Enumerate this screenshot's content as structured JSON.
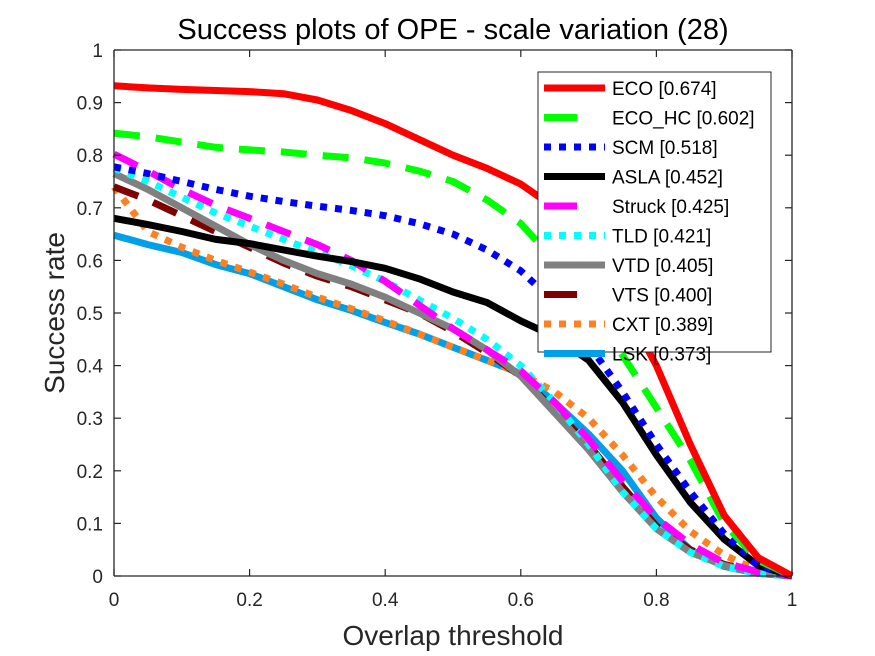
{
  "chart_data": {
    "type": "line",
    "title": "Success plots of OPE - scale variation (28)",
    "xlabel": "Overlap threshold",
    "ylabel": "Success rate",
    "xlim": [
      0,
      1
    ],
    "ylim": [
      0,
      1
    ],
    "xticks": [
      "0",
      "0.2",
      "0.4",
      "0.6",
      "0.8",
      "1"
    ],
    "yticks": [
      "0",
      "0.1",
      "0.2",
      "0.3",
      "0.4",
      "0.5",
      "0.6",
      "0.7",
      "0.8",
      "0.9",
      "1"
    ],
    "xtick_values": [
      0,
      0.2,
      0.4,
      0.6,
      0.8,
      1
    ],
    "ytick_values": [
      0,
      0.1,
      0.2,
      0.3,
      0.4,
      0.5,
      0.6,
      0.7,
      0.8,
      0.9,
      1
    ],
    "grid": false,
    "legend_position": "top-right",
    "x": [
      0,
      0.05,
      0.1,
      0.15,
      0.2,
      0.25,
      0.3,
      0.35,
      0.4,
      0.45,
      0.5,
      0.55,
      0.6,
      0.65,
      0.7,
      0.75,
      0.8,
      0.85,
      0.9,
      0.95,
      1
    ],
    "series": [
      {
        "name": "ECO [0.674]",
        "color": "#ff0000",
        "style": "solid",
        "values": [
          0.932,
          0.928,
          0.925,
          0.923,
          0.921,
          0.917,
          0.905,
          0.885,
          0.86,
          0.83,
          0.8,
          0.775,
          0.745,
          0.7,
          0.62,
          0.52,
          0.4,
          0.25,
          0.115,
          0.035,
          0.0
        ]
      },
      {
        "name": "ECO_HC [0.602]",
        "color": "#00ff00",
        "style": "dashed",
        "values": [
          0.842,
          0.835,
          0.825,
          0.815,
          0.81,
          0.806,
          0.8,
          0.795,
          0.785,
          0.77,
          0.75,
          0.715,
          0.67,
          0.6,
          0.52,
          0.42,
          0.32,
          0.22,
          0.1,
          0.03,
          0.0
        ]
      },
      {
        "name": "SCM [0.518]",
        "color": "#0000ff",
        "style": "dotted",
        "values": [
          0.778,
          0.765,
          0.75,
          0.735,
          0.722,
          0.712,
          0.703,
          0.695,
          0.685,
          0.67,
          0.65,
          0.62,
          0.58,
          0.52,
          0.44,
          0.35,
          0.25,
          0.16,
          0.08,
          0.02,
          0.0
        ]
      },
      {
        "name": "ASLA [0.452]",
        "color": "#000000",
        "style": "solid",
        "values": [
          0.68,
          0.668,
          0.655,
          0.64,
          0.632,
          0.62,
          0.608,
          0.598,
          0.585,
          0.565,
          0.54,
          0.52,
          0.485,
          0.455,
          0.41,
          0.33,
          0.23,
          0.14,
          0.07,
          0.02,
          0.0
        ]
      },
      {
        "name": "Struck [0.425]",
        "color": "#ff00ff",
        "style": "dashed",
        "values": [
          0.802,
          0.77,
          0.735,
          0.705,
          0.68,
          0.655,
          0.63,
          0.6,
          0.56,
          0.515,
          0.47,
          0.43,
          0.39,
          0.33,
          0.26,
          0.18,
          0.11,
          0.06,
          0.025,
          0.008,
          0.0
        ]
      },
      {
        "name": "TLD [0.421]",
        "color": "#00ffff",
        "style": "dotted",
        "values": [
          0.775,
          0.75,
          0.72,
          0.69,
          0.665,
          0.64,
          0.615,
          0.59,
          0.56,
          0.525,
          0.49,
          0.45,
          0.4,
          0.33,
          0.25,
          0.16,
          0.09,
          0.045,
          0.018,
          0.005,
          0.0
        ]
      },
      {
        "name": "VTD [0.405]",
        "color": "#808080",
        "style": "solid",
        "values": [
          0.765,
          0.735,
          0.7,
          0.665,
          0.63,
          0.6,
          0.575,
          0.555,
          0.53,
          0.5,
          0.47,
          0.43,
          0.38,
          0.31,
          0.24,
          0.16,
          0.09,
          0.045,
          0.02,
          0.005,
          0.0
        ]
      },
      {
        "name": "VTS [0.400]",
        "color": "#800000",
        "style": "dashed",
        "values": [
          0.74,
          0.715,
          0.685,
          0.655,
          0.625,
          0.595,
          0.57,
          0.55,
          0.525,
          0.5,
          0.465,
          0.425,
          0.38,
          0.315,
          0.25,
          0.17,
          0.095,
          0.05,
          0.022,
          0.006,
          0.0
        ]
      },
      {
        "name": "CXT [0.389]",
        "color": "#ff8020",
        "style": "dotted",
        "values": [
          0.74,
          0.655,
          0.625,
          0.6,
          0.578,
          0.555,
          0.53,
          0.508,
          0.485,
          0.46,
          0.435,
          0.41,
          0.385,
          0.35,
          0.3,
          0.23,
          0.15,
          0.085,
          0.04,
          0.01,
          0.0
        ]
      },
      {
        "name": "LSK [0.373]",
        "color": "#00a0e8",
        "style": "solid",
        "values": [
          0.648,
          0.63,
          0.615,
          0.592,
          0.575,
          0.55,
          0.525,
          0.505,
          0.482,
          0.46,
          0.435,
          0.41,
          0.385,
          0.33,
          0.27,
          0.2,
          0.11,
          0.05,
          0.018,
          0.005,
          0.0
        ]
      }
    ]
  }
}
